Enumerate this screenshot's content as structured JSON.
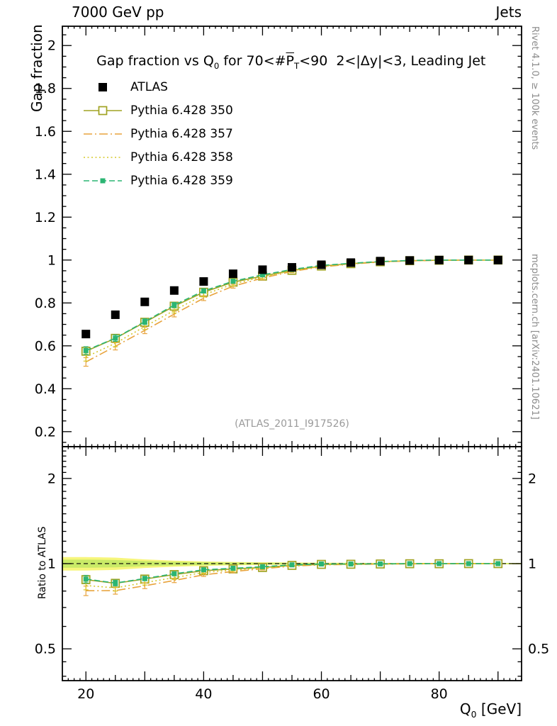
{
  "header": {
    "left": "7000 GeV pp",
    "right": "Jets"
  },
  "side_notes": {
    "top_right": "Rivet 4.1.0, ≥ 100k events",
    "bottom_right": "mcplots.cern.ch [arXiv:2401.10621]"
  },
  "watermark": "(ATLAS_2011_I917526)",
  "title": {
    "p1": "Gap fraction vs Q",
    "sub1": "0",
    "p2": " for 70<#",
    "pbar": "P",
    "subT": "T",
    "p3": "<90  2<|Δy|<3, Leading Jet"
  },
  "axes": {
    "y_main": "Gap fraction",
    "y_ratio": "Ratio to ATLAS",
    "x_q": "Q",
    "x_sub": "0",
    "x_unit": " [GeV]"
  },
  "chart_data": [
    {
      "type": "line",
      "panel": "main",
      "x": [
        20,
        25,
        30,
        35,
        40,
        45,
        50,
        55,
        60,
        65,
        70,
        75,
        80,
        85,
        90
      ],
      "xlim": [
        16,
        94
      ],
      "xticks": [
        20,
        40,
        60,
        80
      ],
      "ylim": [
        0.13,
        2.09
      ],
      "yticks": [
        0.2,
        0.4,
        0.6,
        0.8,
        1,
        1.2,
        1.4,
        1.6,
        1.8,
        2
      ],
      "series": [
        {
          "label": "ATLAS",
          "color": "#000000",
          "marker": "filled-square",
          "marker_size": 12,
          "line": "none",
          "dash": "",
          "values": [
            0.655,
            0.745,
            0.805,
            0.858,
            0.9,
            0.936,
            0.955,
            0.966,
            0.978,
            0.988,
            0.995,
            0.998,
            1.0,
            1.0,
            1.0
          ],
          "yerr": [
            0.012,
            0.01,
            0.009,
            0.008,
            0.007,
            0.006,
            0.005,
            0.005,
            0.004,
            0.003,
            0.003,
            0.002,
            0.002,
            0.002,
            0.002
          ]
        },
        {
          "label": "Pythia 6.428 350",
          "color": "#a0a322",
          "marker": "open-square",
          "marker_size": 11,
          "line": "solid",
          "dash": "",
          "values": [
            0.575,
            0.635,
            0.71,
            0.785,
            0.85,
            0.897,
            0.925,
            0.952,
            0.972,
            0.983,
            0.992,
            0.997,
            0.999,
            1.0,
            1.0
          ],
          "yerr": [
            0.018,
            0.016,
            0.014,
            0.012,
            0.01,
            0.009,
            0.007,
            0.006,
            0.005,
            0.004,
            0.003,
            0.003,
            0.002,
            0.002,
            0.002
          ]
        },
        {
          "label": "Pythia 6.428 357",
          "color": "#e8a33d",
          "marker": "none",
          "marker_size": 0,
          "line": "dashdot",
          "dash": "12,4,2,4",
          "values": [
            0.525,
            0.598,
            0.672,
            0.748,
            0.822,
            0.878,
            0.916,
            0.947,
            0.968,
            0.981,
            0.991,
            0.996,
            0.999,
            1.0,
            1.0
          ],
          "yerr": [
            0.02,
            0.017,
            0.015,
            0.013,
            0.011,
            0.009,
            0.008,
            0.006,
            0.005,
            0.004,
            0.003,
            0.003,
            0.002,
            0.002,
            0.002
          ]
        },
        {
          "label": "Pythia 6.428 358",
          "color": "#d6c82a",
          "marker": "none",
          "marker_size": 0,
          "line": "dotted",
          "dash": "2,3.5",
          "values": [
            0.548,
            0.612,
            0.69,
            0.765,
            0.838,
            0.888,
            0.921,
            0.95,
            0.97,
            0.982,
            0.992,
            0.997,
            0.999,
            1.0,
            1.0
          ],
          "yerr": [
            0.019,
            0.016,
            0.014,
            0.012,
            0.01,
            0.009,
            0.008,
            0.006,
            0.005,
            0.004,
            0.003,
            0.003,
            0.002,
            0.002,
            0.002
          ]
        },
        {
          "label": "Pythia 6.428 359",
          "color": "#2bb573",
          "marker": "filled-square",
          "marker_size": 7,
          "line": "dashed",
          "dash": "8,4",
          "values": [
            0.578,
            0.636,
            0.713,
            0.79,
            0.856,
            0.901,
            0.931,
            0.956,
            0.975,
            0.985,
            0.993,
            0.998,
            1.0,
            1.0,
            1.0
          ],
          "yerr": [
            0.018,
            0.015,
            0.013,
            0.012,
            0.01,
            0.009,
            0.007,
            0.006,
            0.005,
            0.004,
            0.003,
            0.002,
            0.002,
            0.002,
            0.002
          ]
        }
      ]
    },
    {
      "type": "ratio",
      "panel": "ratio",
      "yscale": "log",
      "ylim": [
        0.386,
        2.59
      ],
      "yticks": [
        0.5,
        1,
        2
      ],
      "ref_line": 1,
      "band": {
        "outer_color": "#f7f67c",
        "inner_color": "#c9ea67",
        "outer_halfwidth": [
          0.055,
          0.05,
          0.035,
          0.025,
          0.018,
          0.014,
          0.011,
          0.009,
          0.008,
          0.007,
          0.006,
          0.006,
          0.006,
          0.006,
          0.006
        ],
        "inner_halfwidth": [
          0.033,
          0.03,
          0.021,
          0.015,
          0.011,
          0.008,
          0.007,
          0.005,
          0.005,
          0.004,
          0.004,
          0.004,
          0.004,
          0.004,
          0.004
        ]
      },
      "series": [
        {
          "label": "Pythia 6.428 350",
          "values": [
            0.878,
            0.852,
            0.882,
            0.915,
            0.944,
            0.958,
            0.969,
            0.986,
            0.994,
            0.995,
            0.997,
            0.999,
            0.999,
            1.0,
            1.0
          ],
          "yerr": [
            0.027,
            0.021,
            0.017,
            0.014,
            0.011,
            0.01,
            0.007,
            0.006,
            0.005,
            0.004,
            0.003,
            0.003,
            0.002,
            0.002,
            0.002
          ]
        },
        {
          "label": "Pythia 6.428 357",
          "values": [
            0.802,
            0.803,
            0.835,
            0.872,
            0.913,
            0.938,
            0.959,
            0.98,
            0.99,
            0.993,
            0.996,
            0.998,
            0.999,
            1.0,
            1.0
          ],
          "yerr": [
            0.031,
            0.023,
            0.019,
            0.015,
            0.012,
            0.01,
            0.009,
            0.006,
            0.005,
            0.004,
            0.003,
            0.003,
            0.002,
            0.002,
            0.002
          ]
        },
        {
          "label": "Pythia 6.428 358",
          "values": [
            0.837,
            0.821,
            0.857,
            0.892,
            0.931,
            0.949,
            0.964,
            0.983,
            0.992,
            0.994,
            0.997,
            0.999,
            0.999,
            1.0,
            1.0
          ],
          "yerr": [
            0.029,
            0.021,
            0.017,
            0.014,
            0.011,
            0.01,
            0.009,
            0.006,
            0.005,
            0.004,
            0.003,
            0.003,
            0.002,
            0.002,
            0.002
          ]
        },
        {
          "label": "Pythia 6.428 359",
          "values": [
            0.882,
            0.854,
            0.886,
            0.921,
            0.951,
            0.963,
            0.975,
            0.99,
            0.997,
            0.997,
            0.998,
            1.0,
            1.0,
            1.0,
            1.0
          ],
          "yerr": [
            0.027,
            0.02,
            0.016,
            0.014,
            0.011,
            0.01,
            0.008,
            0.006,
            0.005,
            0.004,
            0.003,
            0.002,
            0.002,
            0.002,
            0.002
          ]
        }
      ]
    }
  ]
}
